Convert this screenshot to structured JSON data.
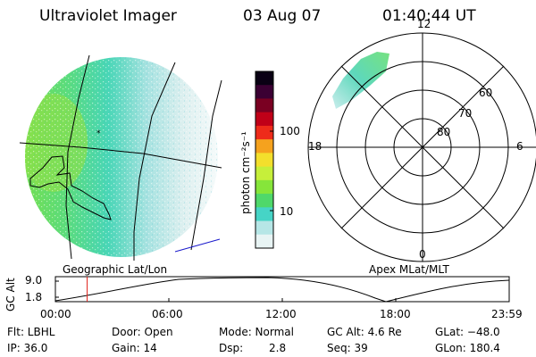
{
  "header": {
    "instrument": "Ultraviolet Imager",
    "date": "03 Aug 07",
    "time": "01:40:44 UT"
  },
  "colorbar": {
    "unit_label": "photon cm⁻²s⁻¹",
    "ticks": [
      "100",
      "10"
    ],
    "colors": [
      "#0a0014",
      "#3b0033",
      "#7a0022",
      "#c00018",
      "#ee2b1a",
      "#f5a21e",
      "#f3df2c",
      "#c6ef3a",
      "#86e53a",
      "#4fd86a",
      "#46d4c6",
      "#b6e6e6",
      "#e8f4f4"
    ]
  },
  "polar": {
    "mlt_labels": {
      "top": "12",
      "left": "18",
      "right": "6",
      "bottom": "0"
    },
    "lat_labels": [
      "60",
      "70",
      "80"
    ]
  },
  "altitude_plot": {
    "axis_label": "GC Alt",
    "y_ticks": [
      "9.0",
      "1.8"
    ],
    "left_caption": "Geographic Lat/Lon",
    "right_caption": "Apex MLat/MLT",
    "x_ticks": [
      "00:00",
      "06:00",
      "12:00",
      "18:00",
      "23:59"
    ],
    "current_time_marker_hours": 1.68,
    "marker_color": "#e0201a"
  },
  "info": {
    "flt": "Flt: LBHL",
    "ip": "IP: 36.0",
    "door": "Door: Open",
    "gain": "Gain: 14",
    "mode": "Mode: Normal",
    "dsp_label": "Dsp:",
    "dsp_value": "2.8",
    "gcalt": "GC Alt: 4.6 Re",
    "seq": "Seq: 39",
    "glat": "GLat: −48.0",
    "glon": "GLon: 180.4"
  }
}
